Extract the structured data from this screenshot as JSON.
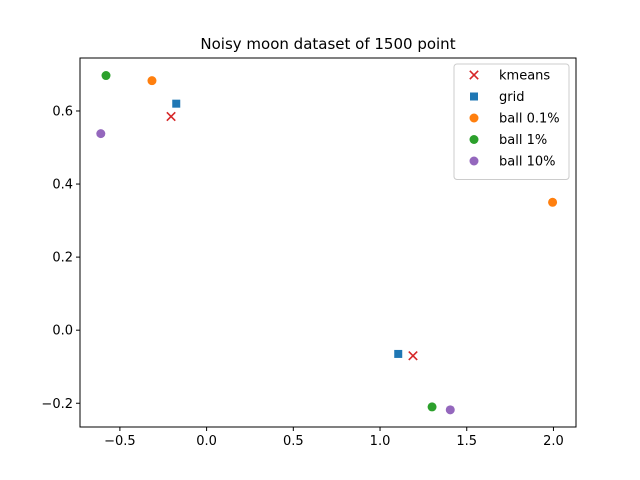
{
  "chart_data": {
    "type": "scatter",
    "title": "Noisy moon dataset of 1500 point",
    "xlabel": "",
    "ylabel": "",
    "xlim": [
      -0.73,
      2.13
    ],
    "ylim": [
      -0.265,
      0.745
    ],
    "xticks": [
      -0.5,
      0.0,
      0.5,
      1.0,
      1.5,
      2.0
    ],
    "xtick_labels": [
      "−0.5",
      "0.0",
      "0.5",
      "1.0",
      "1.5",
      "2.0"
    ],
    "yticks": [
      -0.2,
      0.0,
      0.2,
      0.4,
      0.6
    ],
    "ytick_labels": [
      "−0.2",
      "0.0",
      "0.2",
      "0.4",
      "0.6"
    ],
    "grid": false,
    "legend_position": "top-right",
    "series": [
      {
        "name": "kmeans",
        "marker": "x",
        "color": "#d62728",
        "points": [
          [
            -0.205,
            0.585
          ],
          [
            1.19,
            -0.07
          ]
        ]
      },
      {
        "name": "grid",
        "marker": "square",
        "color": "#1f77b4",
        "points": [
          [
            -0.175,
            0.62
          ],
          [
            1.105,
            -0.065
          ]
        ]
      },
      {
        "name": "ball 0.1%",
        "marker": "circle",
        "color": "#ff7f0e",
        "points": [
          [
            -0.315,
            0.683
          ],
          [
            1.995,
            0.35
          ]
        ]
      },
      {
        "name": "ball 1%",
        "marker": "circle",
        "color": "#2ca02c",
        "points": [
          [
            -0.58,
            0.697
          ],
          [
            1.3,
            -0.21
          ]
        ]
      },
      {
        "name": "ball 10%",
        "marker": "circle",
        "color": "#9467bd",
        "points": [
          [
            -0.61,
            0.538
          ],
          [
            1.405,
            -0.218
          ]
        ]
      }
    ]
  }
}
